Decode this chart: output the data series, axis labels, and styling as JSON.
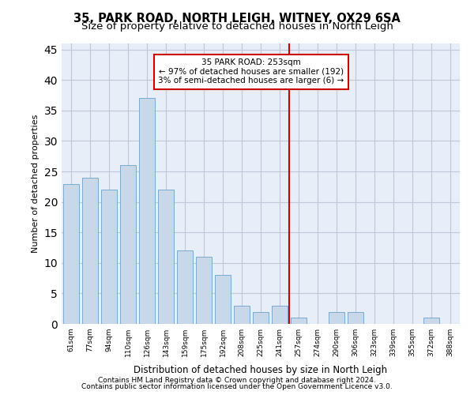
{
  "title1": "35, PARK ROAD, NORTH LEIGH, WITNEY, OX29 6SA",
  "title2": "Size of property relative to detached houses in North Leigh",
  "xlabel": "Distribution of detached houses by size in North Leigh",
  "ylabel": "Number of detached properties",
  "bar_labels": [
    "61sqm",
    "77sqm",
    "94sqm",
    "110sqm",
    "126sqm",
    "143sqm",
    "159sqm",
    "175sqm",
    "192sqm",
    "208sqm",
    "225sqm",
    "241sqm",
    "257sqm",
    "274sqm",
    "290sqm",
    "306sqm",
    "323sqm",
    "339sqm",
    "355sqm",
    "372sqm",
    "388sqm"
  ],
  "bar_values": [
    23,
    24,
    22,
    26,
    37,
    22,
    12,
    11,
    8,
    3,
    2,
    3,
    1,
    0,
    2,
    2,
    0,
    0,
    0,
    1,
    0
  ],
  "bar_color": "#c8d8e8",
  "bar_edgecolor": "#7aaad0",
  "vline_x": 11.5,
  "annotation_title": "35 PARK ROAD: 253sqm",
  "annotation_line1": "← 97% of detached houses are smaller (192)",
  "annotation_line2": "3% of semi-detached houses are larger (6) →",
  "annotation_box_color": "#cc0000",
  "ylim": [
    0,
    46
  ],
  "yticks": [
    0,
    5,
    10,
    15,
    20,
    25,
    30,
    35,
    40,
    45
  ],
  "grid_color": "#c0c8d8",
  "background_color": "#e8eef8",
  "footer1": "Contains HM Land Registry data © Crown copyright and database right 2024.",
  "footer2": "Contains public sector information licensed under the Open Government Licence v3.0."
}
